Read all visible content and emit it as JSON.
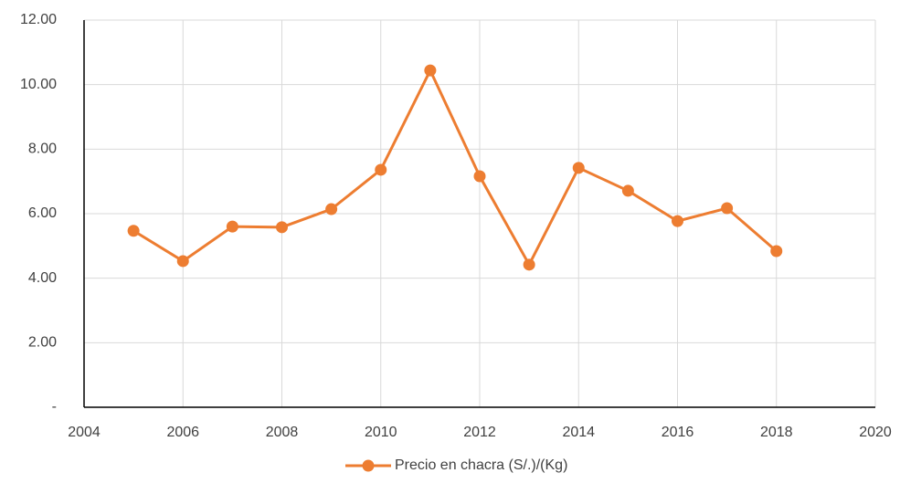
{
  "chart_data": {
    "type": "line",
    "x": [
      2005,
      2006,
      2007,
      2008,
      2009,
      2010,
      2011,
      2012,
      2013,
      2014,
      2015,
      2016,
      2017,
      2018
    ],
    "series": [
      {
        "name": "Precio en chacra (S/.)/(Kg)",
        "color": "#ed7d31",
        "values": [
          5.47,
          4.53,
          5.6,
          5.58,
          6.14,
          7.36,
          10.44,
          7.16,
          4.42,
          7.42,
          6.71,
          5.77,
          6.17,
          4.84
        ]
      }
    ],
    "xlim": [
      2004,
      2020
    ],
    "xticks": [
      2004,
      2006,
      2008,
      2010,
      2012,
      2014,
      2016,
      2018,
      2020
    ],
    "ylim": [
      0,
      12
    ],
    "yticks": [
      {
        "value": 0,
        "label": "-"
      },
      {
        "value": 2,
        "label": "2.00"
      },
      {
        "value": 4,
        "label": "4.00"
      },
      {
        "value": 6,
        "label": "6.00"
      },
      {
        "value": 8,
        "label": "8.00"
      },
      {
        "value": 10,
        "label": "10.00"
      },
      {
        "value": 12,
        "label": "12.00"
      }
    ],
    "grid": true,
    "legend": "bottom"
  }
}
